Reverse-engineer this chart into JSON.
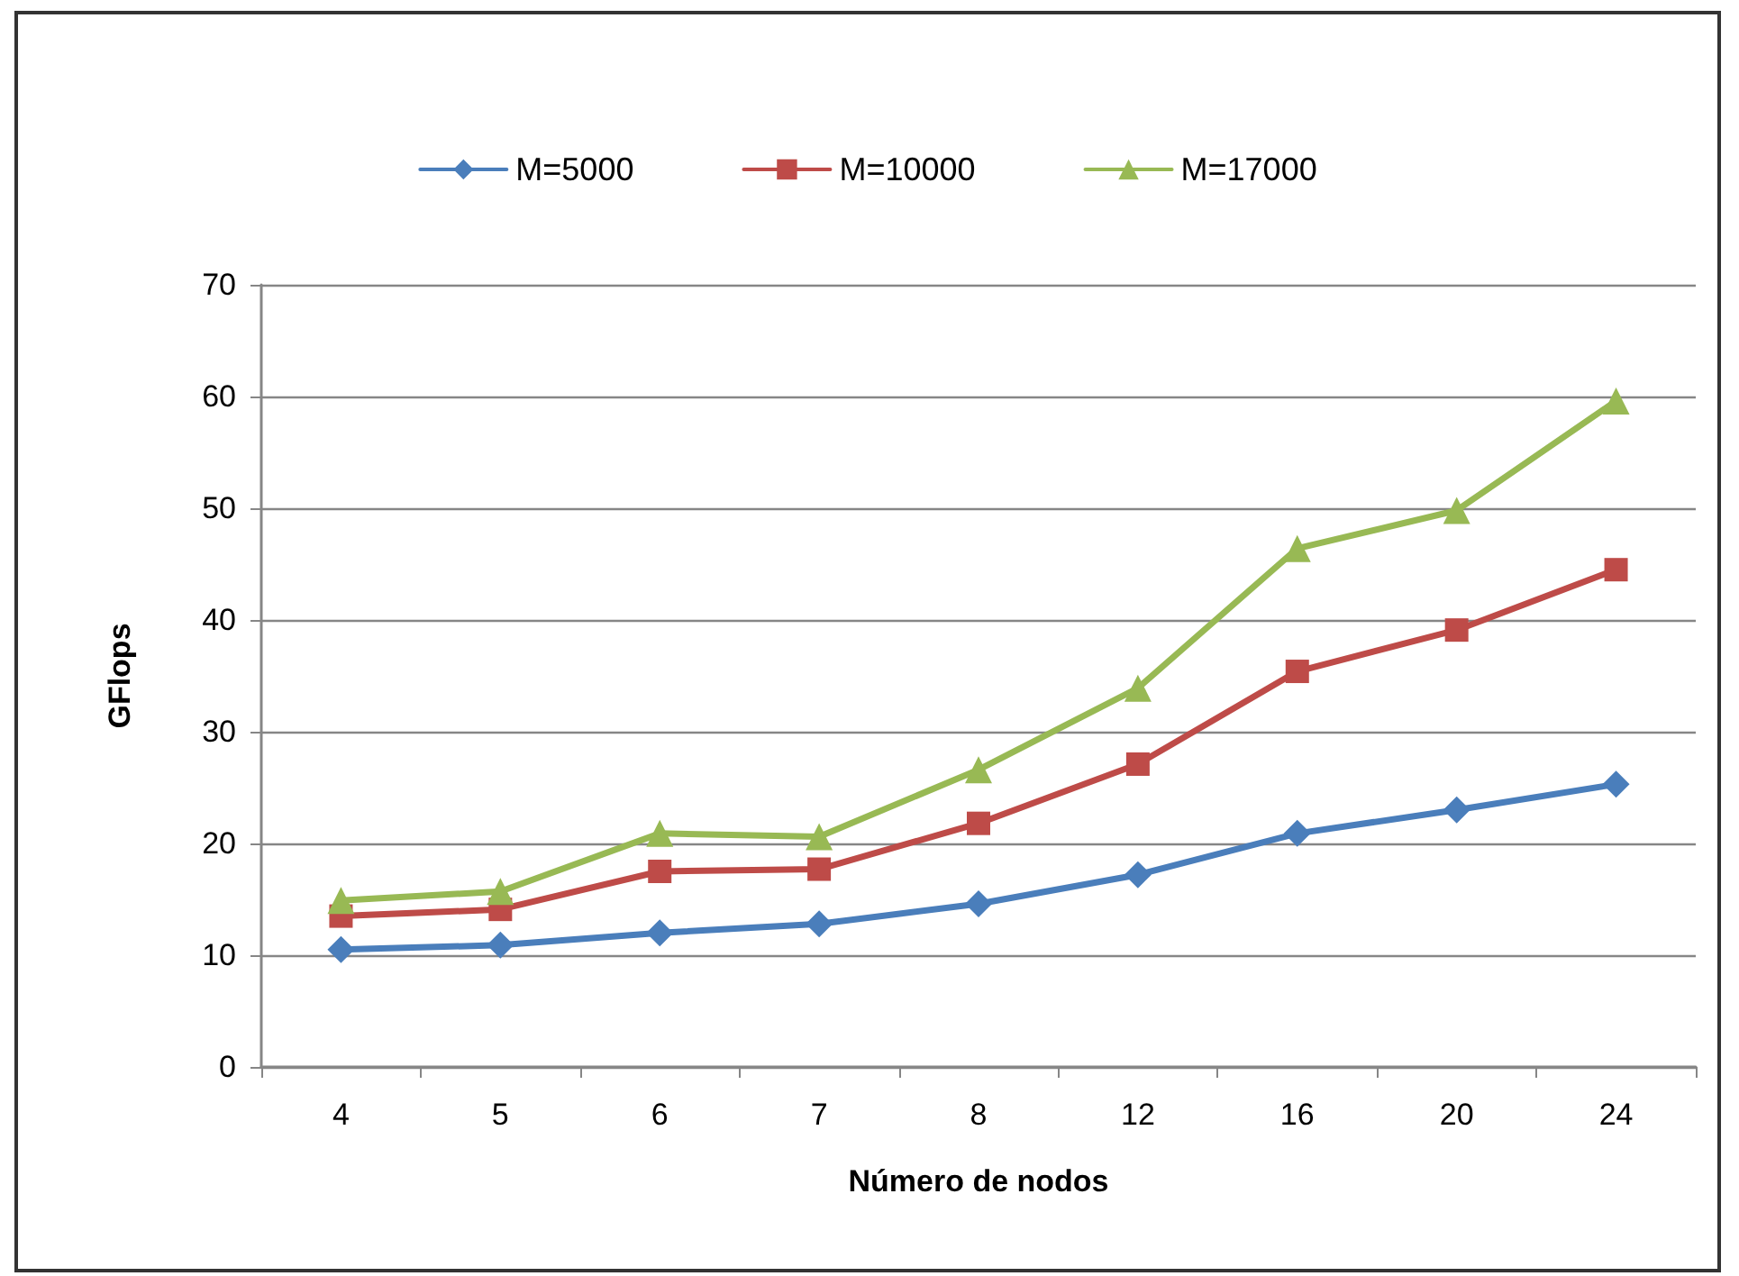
{
  "chart_data": {
    "type": "line",
    "xlabel": "Número de nodos",
    "ylabel": "GFlops",
    "categories": [
      "4",
      "5",
      "6",
      "7",
      "8",
      "12",
      "16",
      "20",
      "24"
    ],
    "ylim": [
      0,
      70
    ],
    "yticks": [
      0,
      10,
      20,
      30,
      40,
      50,
      60,
      70
    ],
    "grid": "y",
    "legend": "top",
    "line_style": "solid",
    "series": [
      {
        "name": "M=5000",
        "color": "#4a7ebb",
        "marker": "diamond",
        "values": [
          10.5,
          10.9,
          12.0,
          12.8,
          14.6,
          17.2,
          20.9,
          23.0,
          25.3
        ]
      },
      {
        "name": "M=10000",
        "color": "#be4b48",
        "marker": "square",
        "values": [
          13.5,
          14.1,
          17.5,
          17.7,
          21.8,
          27.1,
          35.4,
          39.1,
          44.5
        ]
      },
      {
        "name": "M=17000",
        "color": "#98b954",
        "marker": "triangle",
        "values": [
          14.9,
          15.7,
          20.9,
          20.6,
          26.6,
          33.9,
          46.4,
          49.8,
          59.6
        ]
      }
    ]
  }
}
